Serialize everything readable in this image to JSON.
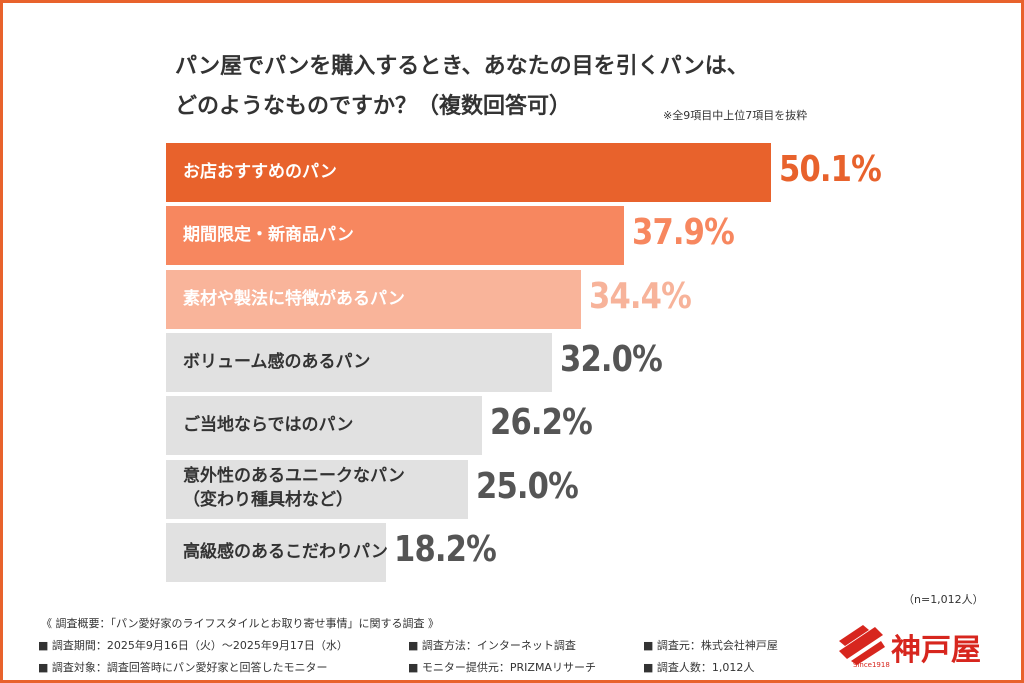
{
  "chart_data": {
    "type": "bar",
    "orientation": "horizontal",
    "title": "パン屋でパンを購入するとき、あなたの目を引くパンは、\nどのようなものですか？（複数回答可）",
    "subtitle": "※全9項目中上位7項目を抜粋",
    "categories": [
      "お店おすすめのパン",
      "期間限定・新商品パン",
      "素材や製法に特徴があるパン",
      "ボリューム感のあるパン",
      "ご当地ならではのパン",
      "意外性のあるユニークなパン\n（変わり種具材など）",
      "高級感のあるこだわりパン"
    ],
    "values": [
      50.1,
      37.9,
      34.4,
      32.0,
      26.2,
      25.0,
      18.2
    ],
    "value_labels": [
      "50.1%",
      "37.9%",
      "34.4%",
      "32.0%",
      "26.2%",
      "25.0%",
      "18.2%"
    ],
    "colors": [
      "#e8622c",
      "#f7875f",
      "#f9b49a",
      "#e1e1e1",
      "#e1e1e1",
      "#e1e1e1",
      "#e1e1e1"
    ],
    "label_colors": [
      "#e8622c",
      "#f7875f",
      "#f7b39a",
      "#555555",
      "#555555",
      "#555555",
      "#555555"
    ],
    "text_colors": [
      "#ffffff",
      "#ffffff",
      "#ffffff",
      "#333333",
      "#333333",
      "#333333",
      "#333333"
    ],
    "sample_note": "（n=1,012人）"
  },
  "footer": {
    "heading": "《 調査概要：「パン愛好家のライフスタイルとお取り寄せ事情」に関する調査 》",
    "rows": [
      [
        "■ 調査期間：2025年9月16日（火）～2025年9月17日（水）",
        "■ 調査方法：インターネット調査",
        "■ 調査元：株式会社神戸屋"
      ],
      [
        "■ 調査対象：調査回答時にパン愛好家と回答したモニター",
        "■ モニター提供元：PRIZMAリサーチ",
        "■ 調査人数：1,012人"
      ]
    ]
  },
  "logo": {
    "name": "神戸屋",
    "since": "Since1918"
  }
}
